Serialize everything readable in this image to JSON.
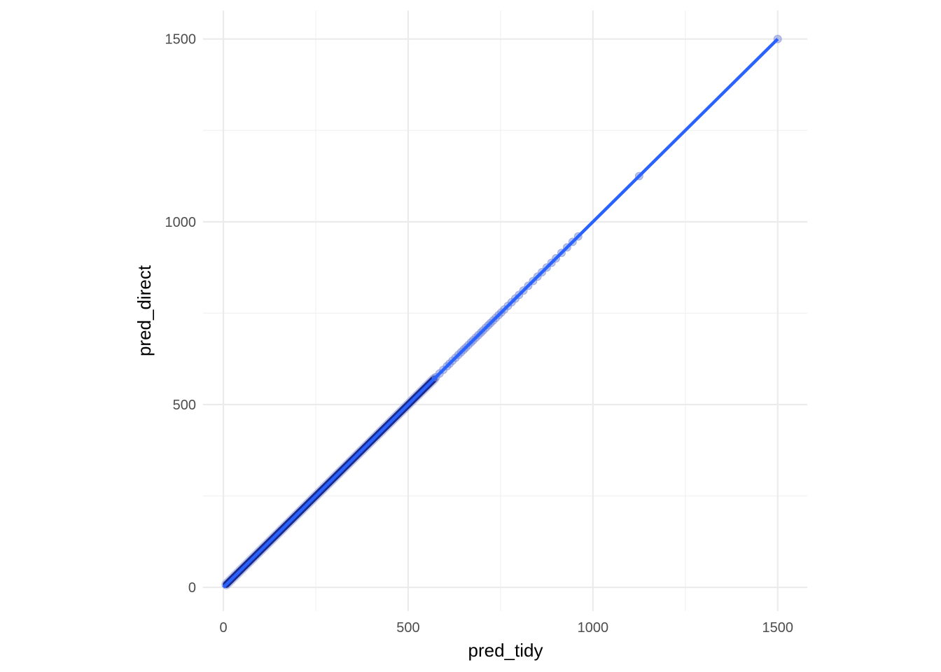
{
  "chart_data": {
    "type": "scatter",
    "title": "",
    "xlabel": "pred_tidy",
    "ylabel": "pred_direct",
    "xlim": [
      -55,
      1580
    ],
    "ylim": [
      -65,
      1578
    ],
    "x_ticks": [
      0,
      500,
      1000,
      1500
    ],
    "y_ticks": [
      0,
      500,
      1000,
      1500
    ],
    "x_tick_labels": [
      "0",
      "500",
      "1000",
      "1500"
    ],
    "y_tick_labels": [
      "0",
      "500",
      "1000",
      "1500"
    ],
    "x_minor": [
      250,
      750,
      1250
    ],
    "y_minor": [
      250,
      750,
      1250
    ],
    "grid": true,
    "dense_segment": {
      "x_start": 8,
      "x_end": 570,
      "y_start": 8,
      "y_end": 570
    },
    "sparse_points": [
      {
        "x": 575,
        "y": 575
      },
      {
        "x": 585,
        "y": 585
      },
      {
        "x": 595,
        "y": 595
      },
      {
        "x": 605,
        "y": 605
      },
      {
        "x": 612,
        "y": 612
      },
      {
        "x": 620,
        "y": 620
      },
      {
        "x": 628,
        "y": 628
      },
      {
        "x": 636,
        "y": 636
      },
      {
        "x": 643,
        "y": 643
      },
      {
        "x": 650,
        "y": 650
      },
      {
        "x": 656,
        "y": 656
      },
      {
        "x": 663,
        "y": 663
      },
      {
        "x": 670,
        "y": 670
      },
      {
        "x": 676,
        "y": 676
      },
      {
        "x": 683,
        "y": 683
      },
      {
        "x": 690,
        "y": 690
      },
      {
        "x": 697,
        "y": 697
      },
      {
        "x": 703,
        "y": 703
      },
      {
        "x": 710,
        "y": 710
      },
      {
        "x": 717,
        "y": 717
      },
      {
        "x": 723,
        "y": 723
      },
      {
        "x": 730,
        "y": 730
      },
      {
        "x": 737,
        "y": 737
      },
      {
        "x": 745,
        "y": 745
      },
      {
        "x": 752,
        "y": 752
      },
      {
        "x": 760,
        "y": 760
      },
      {
        "x": 770,
        "y": 770
      },
      {
        "x": 780,
        "y": 780
      },
      {
        "x": 790,
        "y": 790
      },
      {
        "x": 800,
        "y": 800
      },
      {
        "x": 812,
        "y": 812
      },
      {
        "x": 825,
        "y": 825
      },
      {
        "x": 838,
        "y": 838
      },
      {
        "x": 850,
        "y": 850
      },
      {
        "x": 862,
        "y": 862
      },
      {
        "x": 875,
        "y": 875
      },
      {
        "x": 888,
        "y": 888
      },
      {
        "x": 900,
        "y": 900
      },
      {
        "x": 915,
        "y": 915
      },
      {
        "x": 930,
        "y": 930
      },
      {
        "x": 945,
        "y": 945
      },
      {
        "x": 960,
        "y": 960
      },
      {
        "x": 1125,
        "y": 1125
      },
      {
        "x": 1500,
        "y": 1500
      }
    ],
    "fit_line": {
      "x": [
        0,
        1500
      ],
      "y": [
        0,
        1500
      ]
    },
    "colors": {
      "points": "#1a2a8a",
      "points_light": "#7f8fd6",
      "fit_line": "#2962ff",
      "grid_major": "#ebebeb",
      "grid_minor": "#f1f1f1",
      "tick_text": "#4d4d4d",
      "title_text": "#000000",
      "background": "#ffffff"
    }
  }
}
